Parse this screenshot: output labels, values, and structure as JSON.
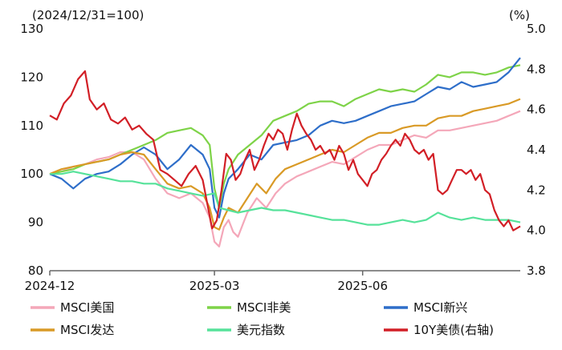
{
  "chart_data": {
    "type": "line",
    "left_unit": "(2024/12/31=100)",
    "right_unit": "(%)",
    "left_axis": {
      "min": 80,
      "max": 130,
      "ticks": [
        80,
        90,
        100,
        110,
        120,
        130
      ]
    },
    "right_axis": {
      "min": 3.8,
      "max": 5.0,
      "ticks": [
        "3.8",
        "4.0",
        "4.2",
        "4.4",
        "4.6",
        "4.8",
        "5.0"
      ]
    },
    "x_axis": {
      "range": [
        0,
        200
      ],
      "ticks": [
        {
          "x": 0,
          "label": "2024-12"
        },
        {
          "x": 70,
          "label": "2025-03"
        },
        {
          "x": 133,
          "label": "2025-06"
        }
      ]
    },
    "grid": false,
    "legend_position": "bottom",
    "series": [
      {
        "name": "MSCI美国",
        "axis": "left",
        "color": "#f4a7b9",
        "points": [
          [
            0,
            100
          ],
          [
            5,
            100.5
          ],
          [
            10,
            101.5
          ],
          [
            15,
            102
          ],
          [
            20,
            103
          ],
          [
            25,
            103.5
          ],
          [
            30,
            104.5
          ],
          [
            35,
            104.5
          ],
          [
            40,
            103
          ],
          [
            45,
            99
          ],
          [
            50,
            96
          ],
          [
            55,
            95
          ],
          [
            60,
            96
          ],
          [
            65,
            94
          ],
          [
            68,
            91
          ],
          [
            70,
            86
          ],
          [
            72,
            85
          ],
          [
            74,
            89
          ],
          [
            76,
            90.5
          ],
          [
            78,
            88
          ],
          [
            80,
            87
          ],
          [
            84,
            92
          ],
          [
            88,
            95
          ],
          [
            92,
            93
          ],
          [
            96,
            96
          ],
          [
            100,
            98
          ],
          [
            105,
            99.5
          ],
          [
            110,
            100.5
          ],
          [
            115,
            101.5
          ],
          [
            120,
            102.5
          ],
          [
            125,
            102
          ],
          [
            130,
            103.5
          ],
          [
            135,
            105
          ],
          [
            140,
            106
          ],
          [
            145,
            106
          ],
          [
            150,
            107
          ],
          [
            155,
            108
          ],
          [
            160,
            107.5
          ],
          [
            165,
            109
          ],
          [
            170,
            109
          ],
          [
            175,
            109.5
          ],
          [
            180,
            110
          ],
          [
            185,
            110.5
          ],
          [
            190,
            111
          ],
          [
            195,
            112
          ],
          [
            200,
            113
          ]
        ]
      },
      {
        "name": "MSCI非美",
        "axis": "left",
        "color": "#7ed348",
        "points": [
          [
            0,
            100
          ],
          [
            5,
            100.5
          ],
          [
            10,
            101
          ],
          [
            15,
            102
          ],
          [
            20,
            102.5
          ],
          [
            25,
            103
          ],
          [
            30,
            104
          ],
          [
            35,
            105
          ],
          [
            40,
            106
          ],
          [
            45,
            107
          ],
          [
            50,
            108.5
          ],
          [
            55,
            109
          ],
          [
            60,
            109.5
          ],
          [
            65,
            108
          ],
          [
            68,
            106
          ],
          [
            70,
            97
          ],
          [
            72,
            93
          ],
          [
            74,
            98
          ],
          [
            76,
            101
          ],
          [
            80,
            104
          ],
          [
            85,
            106
          ],
          [
            90,
            108
          ],
          [
            95,
            111
          ],
          [
            100,
            112
          ],
          [
            105,
            113
          ],
          [
            110,
            114.5
          ],
          [
            115,
            115
          ],
          [
            120,
            115
          ],
          [
            125,
            114
          ],
          [
            130,
            115.5
          ],
          [
            135,
            116.5
          ],
          [
            140,
            117.5
          ],
          [
            145,
            117
          ],
          [
            150,
            117.5
          ],
          [
            155,
            117
          ],
          [
            160,
            118.5
          ],
          [
            165,
            120.5
          ],
          [
            170,
            120
          ],
          [
            175,
            121
          ],
          [
            180,
            121
          ],
          [
            185,
            120.5
          ],
          [
            190,
            121
          ],
          [
            195,
            122
          ],
          [
            200,
            122.5
          ]
        ]
      },
      {
        "name": "MSCI新兴",
        "axis": "left",
        "color": "#2e6ec9",
        "points": [
          [
            0,
            100
          ],
          [
            5,
            99
          ],
          [
            10,
            97
          ],
          [
            15,
            99
          ],
          [
            20,
            100
          ],
          [
            25,
            100.5
          ],
          [
            30,
            102
          ],
          [
            35,
            104
          ],
          [
            40,
            105.5
          ],
          [
            45,
            104
          ],
          [
            50,
            101
          ],
          [
            55,
            103
          ],
          [
            60,
            106
          ],
          [
            65,
            104
          ],
          [
            68,
            101
          ],
          [
            70,
            93
          ],
          [
            72,
            91
          ],
          [
            74,
            96
          ],
          [
            76,
            99
          ],
          [
            80,
            101
          ],
          [
            85,
            104
          ],
          [
            90,
            103
          ],
          [
            95,
            106
          ],
          [
            100,
            106.5
          ],
          [
            105,
            107
          ],
          [
            110,
            108
          ],
          [
            115,
            110
          ],
          [
            120,
            111
          ],
          [
            125,
            110.5
          ],
          [
            130,
            111
          ],
          [
            135,
            112
          ],
          [
            140,
            113
          ],
          [
            145,
            114
          ],
          [
            150,
            114.5
          ],
          [
            155,
            115
          ],
          [
            160,
            116.5
          ],
          [
            165,
            118
          ],
          [
            170,
            117.5
          ],
          [
            175,
            119
          ],
          [
            180,
            118
          ],
          [
            185,
            118.5
          ],
          [
            190,
            119
          ],
          [
            195,
            121
          ],
          [
            200,
            124
          ]
        ]
      },
      {
        "name": "MSCI发达",
        "axis": "left",
        "color": "#d99a26",
        "points": [
          [
            0,
            100
          ],
          [
            5,
            101
          ],
          [
            10,
            101.5
          ],
          [
            15,
            102
          ],
          [
            20,
            102.5
          ],
          [
            25,
            103
          ],
          [
            30,
            104
          ],
          [
            35,
            104.5
          ],
          [
            40,
            104
          ],
          [
            45,
            101
          ],
          [
            50,
            98
          ],
          [
            55,
            97
          ],
          [
            60,
            97.5
          ],
          [
            65,
            96
          ],
          [
            68,
            93
          ],
          [
            70,
            89
          ],
          [
            72,
            88.5
          ],
          [
            74,
            91
          ],
          [
            76,
            93
          ],
          [
            80,
            92
          ],
          [
            84,
            95
          ],
          [
            88,
            98
          ],
          [
            92,
            96
          ],
          [
            96,
            99
          ],
          [
            100,
            101
          ],
          [
            105,
            102
          ],
          [
            110,
            103
          ],
          [
            115,
            104
          ],
          [
            120,
            105
          ],
          [
            125,
            104.5
          ],
          [
            130,
            106
          ],
          [
            135,
            107.5
          ],
          [
            140,
            108.5
          ],
          [
            145,
            108.5
          ],
          [
            150,
            109.5
          ],
          [
            155,
            110
          ],
          [
            160,
            110
          ],
          [
            165,
            111.5
          ],
          [
            170,
            112
          ],
          [
            175,
            112
          ],
          [
            180,
            113
          ],
          [
            185,
            113.5
          ],
          [
            190,
            114
          ],
          [
            195,
            114.5
          ],
          [
            200,
            115.5
          ]
        ]
      },
      {
        "name": "美元指数",
        "axis": "left",
        "color": "#56e29a",
        "points": [
          [
            0,
            100
          ],
          [
            5,
            100
          ],
          [
            10,
            100.5
          ],
          [
            15,
            100
          ],
          [
            20,
            99.5
          ],
          [
            25,
            99
          ],
          [
            30,
            98.5
          ],
          [
            35,
            98.5
          ],
          [
            40,
            98
          ],
          [
            45,
            98
          ],
          [
            50,
            97
          ],
          [
            55,
            96.5
          ],
          [
            60,
            96
          ],
          [
            65,
            95.5
          ],
          [
            70,
            96
          ],
          [
            72,
            93
          ],
          [
            76,
            92.5
          ],
          [
            80,
            92
          ],
          [
            85,
            92.5
          ],
          [
            90,
            93
          ],
          [
            95,
            92.5
          ],
          [
            100,
            92.5
          ],
          [
            105,
            92
          ],
          [
            110,
            91.5
          ],
          [
            115,
            91
          ],
          [
            120,
            90.5
          ],
          [
            125,
            90.5
          ],
          [
            130,
            90
          ],
          [
            135,
            89.5
          ],
          [
            140,
            89.5
          ],
          [
            145,
            90
          ],
          [
            150,
            90.5
          ],
          [
            155,
            90
          ],
          [
            160,
            90.5
          ],
          [
            165,
            92
          ],
          [
            170,
            91
          ],
          [
            175,
            90.5
          ],
          [
            180,
            91
          ],
          [
            185,
            90.5
          ],
          [
            190,
            90.5
          ],
          [
            195,
            90.5
          ],
          [
            200,
            90
          ]
        ]
      },
      {
        "name": "10Y美债(右轴)",
        "axis": "right",
        "color": "#d21f26",
        "points": [
          [
            0,
            4.57
          ],
          [
            3,
            4.55
          ],
          [
            6,
            4.63
          ],
          [
            9,
            4.67
          ],
          [
            12,
            4.75
          ],
          [
            15,
            4.79
          ],
          [
            17,
            4.65
          ],
          [
            20,
            4.6
          ],
          [
            23,
            4.63
          ],
          [
            26,
            4.55
          ],
          [
            29,
            4.53
          ],
          [
            32,
            4.56
          ],
          [
            35,
            4.5
          ],
          [
            38,
            4.52
          ],
          [
            41,
            4.48
          ],
          [
            44,
            4.45
          ],
          [
            47,
            4.3
          ],
          [
            50,
            4.28
          ],
          [
            53,
            4.25
          ],
          [
            56,
            4.22
          ],
          [
            59,
            4.28
          ],
          [
            62,
            4.32
          ],
          [
            65,
            4.25
          ],
          [
            67,
            4.13
          ],
          [
            69,
            4.01
          ],
          [
            71,
            4.05
          ],
          [
            73,
            4.2
          ],
          [
            75,
            4.38
          ],
          [
            77,
            4.35
          ],
          [
            79,
            4.25
          ],
          [
            81,
            4.28
          ],
          [
            83,
            4.35
          ],
          [
            85,
            4.4
          ],
          [
            87,
            4.3
          ],
          [
            89,
            4.35
          ],
          [
            91,
            4.42
          ],
          [
            93,
            4.48
          ],
          [
            95,
            4.45
          ],
          [
            97,
            4.5
          ],
          [
            99,
            4.48
          ],
          [
            101,
            4.4
          ],
          [
            103,
            4.5
          ],
          [
            105,
            4.58
          ],
          [
            107,
            4.52
          ],
          [
            109,
            4.48
          ],
          [
            111,
            4.45
          ],
          [
            113,
            4.4
          ],
          [
            115,
            4.42
          ],
          [
            117,
            4.38
          ],
          [
            119,
            4.4
          ],
          [
            121,
            4.35
          ],
          [
            123,
            4.42
          ],
          [
            125,
            4.38
          ],
          [
            127,
            4.3
          ],
          [
            129,
            4.35
          ],
          [
            131,
            4.28
          ],
          [
            133,
            4.25
          ],
          [
            135,
            4.22
          ],
          [
            137,
            4.28
          ],
          [
            139,
            4.3
          ],
          [
            141,
            4.35
          ],
          [
            143,
            4.38
          ],
          [
            145,
            4.42
          ],
          [
            147,
            4.45
          ],
          [
            149,
            4.42
          ],
          [
            151,
            4.48
          ],
          [
            153,
            4.45
          ],
          [
            155,
            4.4
          ],
          [
            157,
            4.38
          ],
          [
            159,
            4.4
          ],
          [
            161,
            4.35
          ],
          [
            163,
            4.38
          ],
          [
            165,
            4.2
          ],
          [
            167,
            4.18
          ],
          [
            169,
            4.2
          ],
          [
            171,
            4.25
          ],
          [
            173,
            4.3
          ],
          [
            175,
            4.3
          ],
          [
            177,
            4.28
          ],
          [
            179,
            4.3
          ],
          [
            181,
            4.25
          ],
          [
            183,
            4.28
          ],
          [
            185,
            4.2
          ],
          [
            187,
            4.18
          ],
          [
            189,
            4.1
          ],
          [
            191,
            4.05
          ],
          [
            193,
            4.02
          ],
          [
            195,
            4.05
          ],
          [
            197,
            4.0
          ],
          [
            200,
            4.02
          ]
        ]
      }
    ]
  }
}
